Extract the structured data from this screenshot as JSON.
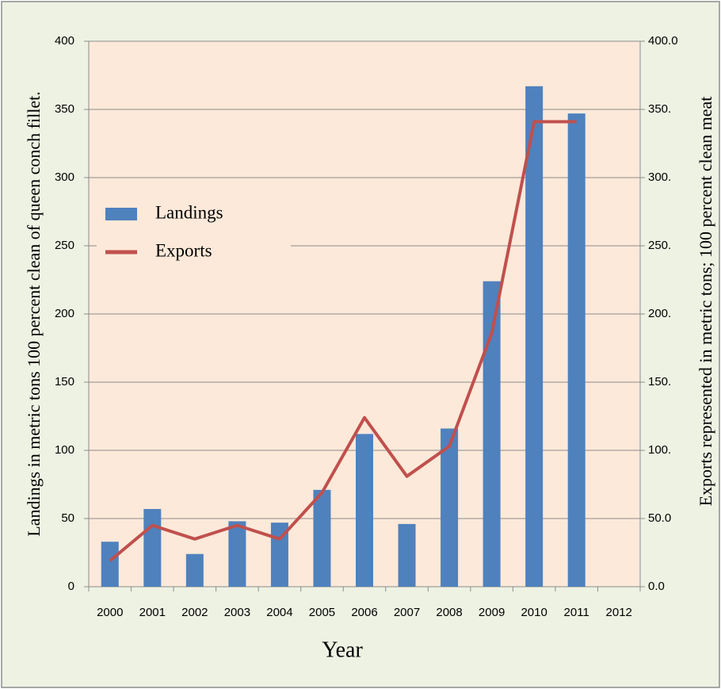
{
  "chart_data": {
    "type": "bar_line",
    "x_label": "Year",
    "y_label": "Landings in metric tons 100 percent clean of queen conch fillet.",
    "y2_label": "Exports represented in metric tons; 100 percent clean meat",
    "categories": [
      "2000",
      "2001",
      "2002",
      "2003",
      "2004",
      "2005",
      "2006",
      "2007",
      "2008",
      "2009",
      "2010",
      "2011",
      "2012"
    ],
    "series": [
      {
        "name": "Landings",
        "type": "bar",
        "color": "#4f81bd",
        "values": [
          33,
          57,
          24,
          48,
          47,
          71,
          112,
          46,
          116,
          224,
          367,
          347,
          null
        ]
      },
      {
        "name": "Exports",
        "type": "line",
        "axis": "y2",
        "color": "#c0504d",
        "values": [
          19,
          45,
          35,
          45,
          35,
          69,
          124,
          81,
          103,
          186,
          341,
          341,
          null
        ]
      }
    ],
    "ylim": [
      0,
      400
    ],
    "yticks": [
      0,
      50,
      100,
      150,
      200,
      250,
      300,
      350,
      400
    ],
    "y2lim": [
      0,
      400
    ],
    "y2ticks": [
      {
        "value": 0,
        "label": "0.0"
      },
      {
        "value": 50,
        "label": "50.0"
      },
      {
        "value": 100,
        "label": "100."
      },
      {
        "value": 150,
        "label": "150."
      },
      {
        "value": 200,
        "label": "200."
      },
      {
        "value": 250,
        "label": "250."
      },
      {
        "value": 300,
        "label": "300."
      },
      {
        "value": 350,
        "label": "350."
      },
      {
        "value": 400,
        "label": "400.0"
      }
    ],
    "grid": true,
    "legend": "upper left"
  }
}
